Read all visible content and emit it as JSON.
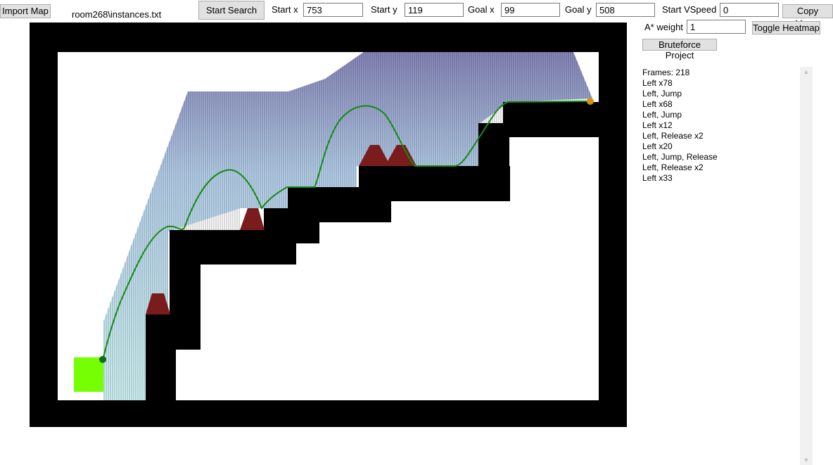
{
  "toolbar": {
    "import_label": "Import Map",
    "file_name": "room268\\instances.txt",
    "start_search_label": "Start Search",
    "start_x_label": "Start x",
    "start_x_value": "753",
    "start_y_label": "Start y",
    "start_y_value": "119",
    "goal_x_label": "Goal x",
    "goal_x_value": "99",
    "goal_y_label": "Goal y",
    "goal_y_value": "508",
    "start_vspeed_label": "Start VSpeed",
    "start_vspeed_value": "0",
    "copy_macro_label": "Copy Macro",
    "astar_weight_label": "A* weight",
    "astar_weight_value": "1",
    "toggle_heatmap_label": "Toggle Heatmap",
    "bruteforce_label": "Bruteforce Project"
  },
  "output": {
    "lines": [
      "Frames: 218",
      "Left x78",
      "Left, Jump",
      "Left x68",
      "Left, Jump",
      "Left x12",
      "Left, Release x2",
      "Left x20",
      "Left, Jump, Release",
      "Left, Release x2",
      "Left x33"
    ]
  },
  "colors": {
    "wall": "#000000",
    "spike": "#7b1c1c",
    "goal_block": "#76ff03",
    "path": "#138a13",
    "start_marker": "#d4900f",
    "end_marker": "#0e6e10"
  }
}
